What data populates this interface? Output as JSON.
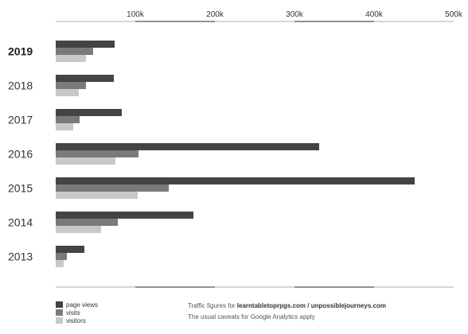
{
  "chart_data": {
    "type": "bar",
    "orientation": "horizontal",
    "categories": [
      "2019",
      "2018",
      "2017",
      "2016",
      "2015",
      "2014",
      "2013"
    ],
    "highlight_category": "2019",
    "series": [
      {
        "name": "page views",
        "color": "#444444",
        "values": [
          74000,
          73000,
          83000,
          331000,
          451000,
          173000,
          36000
        ]
      },
      {
        "name": "visits",
        "color": "#7a7a7a",
        "values": [
          47000,
          38000,
          30000,
          104000,
          142000,
          78000,
          14000
        ]
      },
      {
        "name": "visitors",
        "color": "#c8c8c8",
        "values": [
          38000,
          29000,
          22000,
          75000,
          103000,
          57000,
          10000
        ]
      }
    ],
    "x_ticks": [
      "100k",
      "200k",
      "300k",
      "400k",
      "500k"
    ],
    "xlim": [
      0,
      500000
    ],
    "grid": false,
    "legend_position": "bottom-left"
  },
  "note": {
    "line1_prefix": "Traffic figures for ",
    "line1_sites": "learntabletoprpgs.com / unpossiblejourneys.com",
    "line2": "The usual caveats for Google Analytics apply"
  }
}
